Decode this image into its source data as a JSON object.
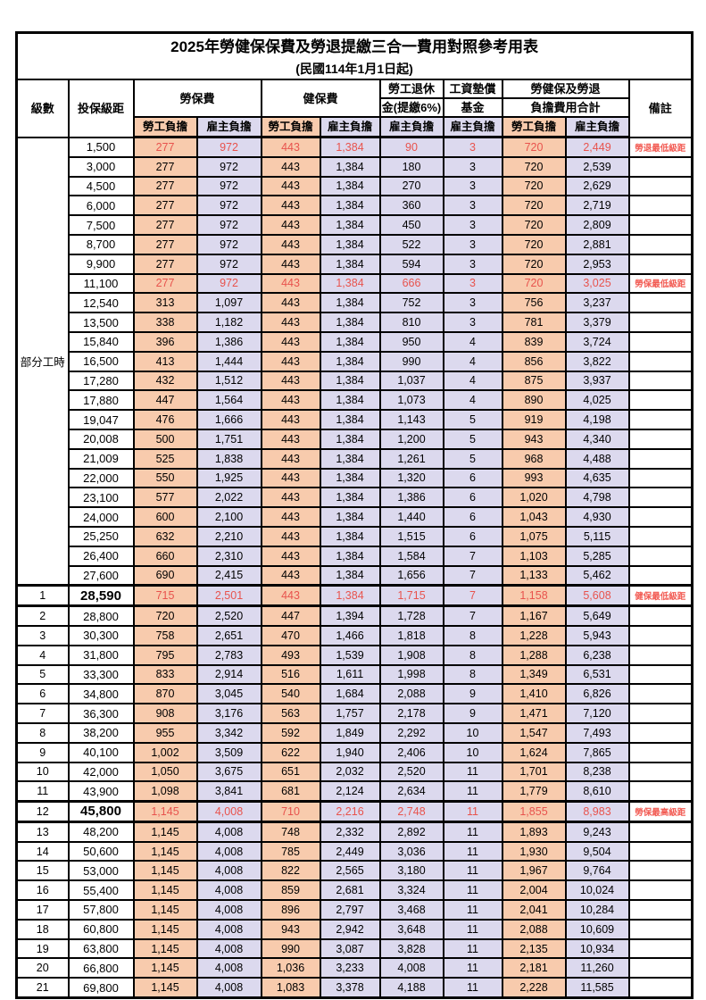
{
  "title": "2025年勞健保保費及勞退提繳三合一費用對照參考用表",
  "subtitle": "(民國114年1月1日起)",
  "colors": {
    "employee_column_bg": "#f8cbad",
    "employer_column_bg": "#dcd9ee",
    "highlight_text": "#e8534d",
    "remark_text": "#f25a52",
    "border": "#000000",
    "background": "#ffffff"
  },
  "table": {
    "header": {
      "level": "級數",
      "bracket": "投保級距",
      "labor": "勞保費",
      "health": "健保費",
      "pension_line1": "勞工退休",
      "pension_line2": "金(提繳6%)",
      "fund_line1": "工資墊償",
      "fund_line2": "基金",
      "total_line1": "勞健保及勞退",
      "total_line2": "負擔費用合計",
      "remark": "備註",
      "employee": "勞工負擔",
      "employer": "雇主負擔"
    },
    "part_time": {
      "label": "部分工時",
      "rowspan": 23
    },
    "column_keys": [
      "labor-employee",
      "labor-employer",
      "health-employee",
      "health-employer",
      "pension-employer",
      "wage-fund-employer",
      "total-employee",
      "total-employer"
    ],
    "column_styles": [
      "emp",
      "er",
      "emp",
      "er",
      "er",
      "er",
      "emp",
      "er"
    ],
    "rows": [
      {
        "level": null,
        "bracket": "1,500",
        "values": [
          "277",
          "972",
          "443",
          "1,384",
          "90",
          "3",
          "720",
          "2,449"
        ],
        "remark": "勞退最低級距",
        "red": true,
        "highlight": false,
        "big": false
      },
      {
        "level": null,
        "bracket": "3,000",
        "values": [
          "277",
          "972",
          "443",
          "1,384",
          "180",
          "3",
          "720",
          "2,539"
        ],
        "remark": "",
        "red": false,
        "highlight": false,
        "big": false
      },
      {
        "level": null,
        "bracket": "4,500",
        "values": [
          "277",
          "972",
          "443",
          "1,384",
          "270",
          "3",
          "720",
          "2,629"
        ],
        "remark": "",
        "red": false,
        "highlight": false,
        "big": false
      },
      {
        "level": null,
        "bracket": "6,000",
        "values": [
          "277",
          "972",
          "443",
          "1,384",
          "360",
          "3",
          "720",
          "2,719"
        ],
        "remark": "",
        "red": false,
        "highlight": false,
        "big": false
      },
      {
        "level": null,
        "bracket": "7,500",
        "values": [
          "277",
          "972",
          "443",
          "1,384",
          "450",
          "3",
          "720",
          "2,809"
        ],
        "remark": "",
        "red": false,
        "highlight": false,
        "big": false
      },
      {
        "level": null,
        "bracket": "8,700",
        "values": [
          "277",
          "972",
          "443",
          "1,384",
          "522",
          "3",
          "720",
          "2,881"
        ],
        "remark": "",
        "red": false,
        "highlight": false,
        "big": false
      },
      {
        "level": null,
        "bracket": "9,900",
        "values": [
          "277",
          "972",
          "443",
          "1,384",
          "594",
          "3",
          "720",
          "2,953"
        ],
        "remark": "",
        "red": false,
        "highlight": false,
        "big": false
      },
      {
        "level": null,
        "bracket": "11,100",
        "values": [
          "277",
          "972",
          "443",
          "1,384",
          "666",
          "3",
          "720",
          "3,025"
        ],
        "remark": "勞保最低級距",
        "red": true,
        "highlight": false,
        "big": false
      },
      {
        "level": null,
        "bracket": "12,540",
        "values": [
          "313",
          "1,097",
          "443",
          "1,384",
          "752",
          "3",
          "756",
          "3,237"
        ],
        "remark": "",
        "red": false,
        "highlight": false,
        "big": false
      },
      {
        "level": null,
        "bracket": "13,500",
        "values": [
          "338",
          "1,182",
          "443",
          "1,384",
          "810",
          "3",
          "781",
          "3,379"
        ],
        "remark": "",
        "red": false,
        "highlight": false,
        "big": false
      },
      {
        "level": null,
        "bracket": "15,840",
        "values": [
          "396",
          "1,386",
          "443",
          "1,384",
          "950",
          "4",
          "839",
          "3,724"
        ],
        "remark": "",
        "red": false,
        "highlight": false,
        "big": false
      },
      {
        "level": null,
        "bracket": "16,500",
        "values": [
          "413",
          "1,444",
          "443",
          "1,384",
          "990",
          "4",
          "856",
          "3,822"
        ],
        "remark": "",
        "red": false,
        "highlight": false,
        "big": false
      },
      {
        "level": null,
        "bracket": "17,280",
        "values": [
          "432",
          "1,512",
          "443",
          "1,384",
          "1,037",
          "4",
          "875",
          "3,937"
        ],
        "remark": "",
        "red": false,
        "highlight": false,
        "big": false
      },
      {
        "level": null,
        "bracket": "17,880",
        "values": [
          "447",
          "1,564",
          "443",
          "1,384",
          "1,073",
          "4",
          "890",
          "4,025"
        ],
        "remark": "",
        "red": false,
        "highlight": false,
        "big": false
      },
      {
        "level": null,
        "bracket": "19,047",
        "values": [
          "476",
          "1,666",
          "443",
          "1,384",
          "1,143",
          "5",
          "919",
          "4,198"
        ],
        "remark": "",
        "red": false,
        "highlight": false,
        "big": false
      },
      {
        "level": null,
        "bracket": "20,008",
        "values": [
          "500",
          "1,751",
          "443",
          "1,384",
          "1,200",
          "5",
          "943",
          "4,340"
        ],
        "remark": "",
        "red": false,
        "highlight": false,
        "big": false
      },
      {
        "level": null,
        "bracket": "21,009",
        "values": [
          "525",
          "1,838",
          "443",
          "1,384",
          "1,261",
          "5",
          "968",
          "4,488"
        ],
        "remark": "",
        "red": false,
        "highlight": false,
        "big": false
      },
      {
        "level": null,
        "bracket": "22,000",
        "values": [
          "550",
          "1,925",
          "443",
          "1,384",
          "1,320",
          "6",
          "993",
          "4,635"
        ],
        "remark": "",
        "red": false,
        "highlight": false,
        "big": false
      },
      {
        "level": null,
        "bracket": "23,100",
        "values": [
          "577",
          "2,022",
          "443",
          "1,384",
          "1,386",
          "6",
          "1,020",
          "4,798"
        ],
        "remark": "",
        "red": false,
        "highlight": false,
        "big": false
      },
      {
        "level": null,
        "bracket": "24,000",
        "values": [
          "600",
          "2,100",
          "443",
          "1,384",
          "1,440",
          "6",
          "1,043",
          "4,930"
        ],
        "remark": "",
        "red": false,
        "highlight": false,
        "big": false
      },
      {
        "level": null,
        "bracket": "25,250",
        "values": [
          "632",
          "2,210",
          "443",
          "1,384",
          "1,515",
          "6",
          "1,075",
          "5,115"
        ],
        "remark": "",
        "red": false,
        "highlight": false,
        "big": false
      },
      {
        "level": null,
        "bracket": "26,400",
        "values": [
          "660",
          "2,310",
          "443",
          "1,384",
          "1,584",
          "7",
          "1,103",
          "5,285"
        ],
        "remark": "",
        "red": false,
        "highlight": false,
        "big": false
      },
      {
        "level": null,
        "bracket": "27,600",
        "values": [
          "690",
          "2,415",
          "443",
          "1,384",
          "1,656",
          "7",
          "1,133",
          "5,462"
        ],
        "remark": "",
        "red": false,
        "highlight": false,
        "big": false
      },
      {
        "level": "1",
        "bracket": "28,590",
        "values": [
          "715",
          "2,501",
          "443",
          "1,384",
          "1,715",
          "7",
          "1,158",
          "5,608"
        ],
        "remark": "健保最低級距",
        "red": true,
        "highlight": true,
        "big": true
      },
      {
        "level": "2",
        "bracket": "28,800",
        "values": [
          "720",
          "2,520",
          "447",
          "1,394",
          "1,728",
          "7",
          "1,167",
          "5,649"
        ],
        "remark": "",
        "red": false,
        "highlight": false,
        "big": false
      },
      {
        "level": "3",
        "bracket": "30,300",
        "values": [
          "758",
          "2,651",
          "470",
          "1,466",
          "1,818",
          "8",
          "1,228",
          "5,943"
        ],
        "remark": "",
        "red": false,
        "highlight": false,
        "big": false
      },
      {
        "level": "4",
        "bracket": "31,800",
        "values": [
          "795",
          "2,783",
          "493",
          "1,539",
          "1,908",
          "8",
          "1,288",
          "6,238"
        ],
        "remark": "",
        "red": false,
        "highlight": false,
        "big": false
      },
      {
        "level": "5",
        "bracket": "33,300",
        "values": [
          "833",
          "2,914",
          "516",
          "1,611",
          "1,998",
          "8",
          "1,349",
          "6,531"
        ],
        "remark": "",
        "red": false,
        "highlight": false,
        "big": false
      },
      {
        "level": "6",
        "bracket": "34,800",
        "values": [
          "870",
          "3,045",
          "540",
          "1,684",
          "2,088",
          "9",
          "1,410",
          "6,826"
        ],
        "remark": "",
        "red": false,
        "highlight": false,
        "big": false
      },
      {
        "level": "7",
        "bracket": "36,300",
        "values": [
          "908",
          "3,176",
          "563",
          "1,757",
          "2,178",
          "9",
          "1,471",
          "7,120"
        ],
        "remark": "",
        "red": false,
        "highlight": false,
        "big": false
      },
      {
        "level": "8",
        "bracket": "38,200",
        "values": [
          "955",
          "3,342",
          "592",
          "1,849",
          "2,292",
          "10",
          "1,547",
          "7,493"
        ],
        "remark": "",
        "red": false,
        "highlight": false,
        "big": false
      },
      {
        "level": "9",
        "bracket": "40,100",
        "values": [
          "1,002",
          "3,509",
          "622",
          "1,940",
          "2,406",
          "10",
          "1,624",
          "7,865"
        ],
        "remark": "",
        "red": false,
        "highlight": false,
        "big": false
      },
      {
        "level": "10",
        "bracket": "42,000",
        "values": [
          "1,050",
          "3,675",
          "651",
          "2,032",
          "2,520",
          "11",
          "1,701",
          "8,238"
        ],
        "remark": "",
        "red": false,
        "highlight": false,
        "big": false
      },
      {
        "level": "11",
        "bracket": "43,900",
        "values": [
          "1,098",
          "3,841",
          "681",
          "2,124",
          "2,634",
          "11",
          "1,779",
          "8,610"
        ],
        "remark": "",
        "red": false,
        "highlight": false,
        "big": false
      },
      {
        "level": "12",
        "bracket": "45,800",
        "values": [
          "1,145",
          "4,008",
          "710",
          "2,216",
          "2,748",
          "11",
          "1,855",
          "8,983"
        ],
        "remark": "勞保最高級距",
        "red": true,
        "highlight": true,
        "big": true
      },
      {
        "level": "13",
        "bracket": "48,200",
        "values": [
          "1,145",
          "4,008",
          "748",
          "2,332",
          "2,892",
          "11",
          "1,893",
          "9,243"
        ],
        "remark": "",
        "red": false,
        "highlight": false,
        "big": false
      },
      {
        "level": "14",
        "bracket": "50,600",
        "values": [
          "1,145",
          "4,008",
          "785",
          "2,449",
          "3,036",
          "11",
          "1,930",
          "9,504"
        ],
        "remark": "",
        "red": false,
        "highlight": false,
        "big": false
      },
      {
        "level": "15",
        "bracket": "53,000",
        "values": [
          "1,145",
          "4,008",
          "822",
          "2,565",
          "3,180",
          "11",
          "1,967",
          "9,764"
        ],
        "remark": "",
        "red": false,
        "highlight": false,
        "big": false
      },
      {
        "level": "16",
        "bracket": "55,400",
        "values": [
          "1,145",
          "4,008",
          "859",
          "2,681",
          "3,324",
          "11",
          "2,004",
          "10,024"
        ],
        "remark": "",
        "red": false,
        "highlight": false,
        "big": false
      },
      {
        "level": "17",
        "bracket": "57,800",
        "values": [
          "1,145",
          "4,008",
          "896",
          "2,797",
          "3,468",
          "11",
          "2,041",
          "10,284"
        ],
        "remark": "",
        "red": false,
        "highlight": false,
        "big": false
      },
      {
        "level": "18",
        "bracket": "60,800",
        "values": [
          "1,145",
          "4,008",
          "943",
          "2,942",
          "3,648",
          "11",
          "2,088",
          "10,609"
        ],
        "remark": "",
        "red": false,
        "highlight": false,
        "big": false
      },
      {
        "level": "19",
        "bracket": "63,800",
        "values": [
          "1,145",
          "4,008",
          "990",
          "3,087",
          "3,828",
          "11",
          "2,135",
          "10,934"
        ],
        "remark": "",
        "red": false,
        "highlight": false,
        "big": false
      },
      {
        "level": "20",
        "bracket": "66,800",
        "values": [
          "1,145",
          "4,008",
          "1,036",
          "3,233",
          "4,008",
          "11",
          "2,181",
          "11,260"
        ],
        "remark": "",
        "red": false,
        "highlight": false,
        "big": false
      },
      {
        "level": "21",
        "bracket": "69,800",
        "values": [
          "1,145",
          "4,008",
          "1,083",
          "3,378",
          "4,188",
          "11",
          "2,228",
          "11,585"
        ],
        "remark": "",
        "red": false,
        "highlight": false,
        "big": false
      }
    ]
  }
}
